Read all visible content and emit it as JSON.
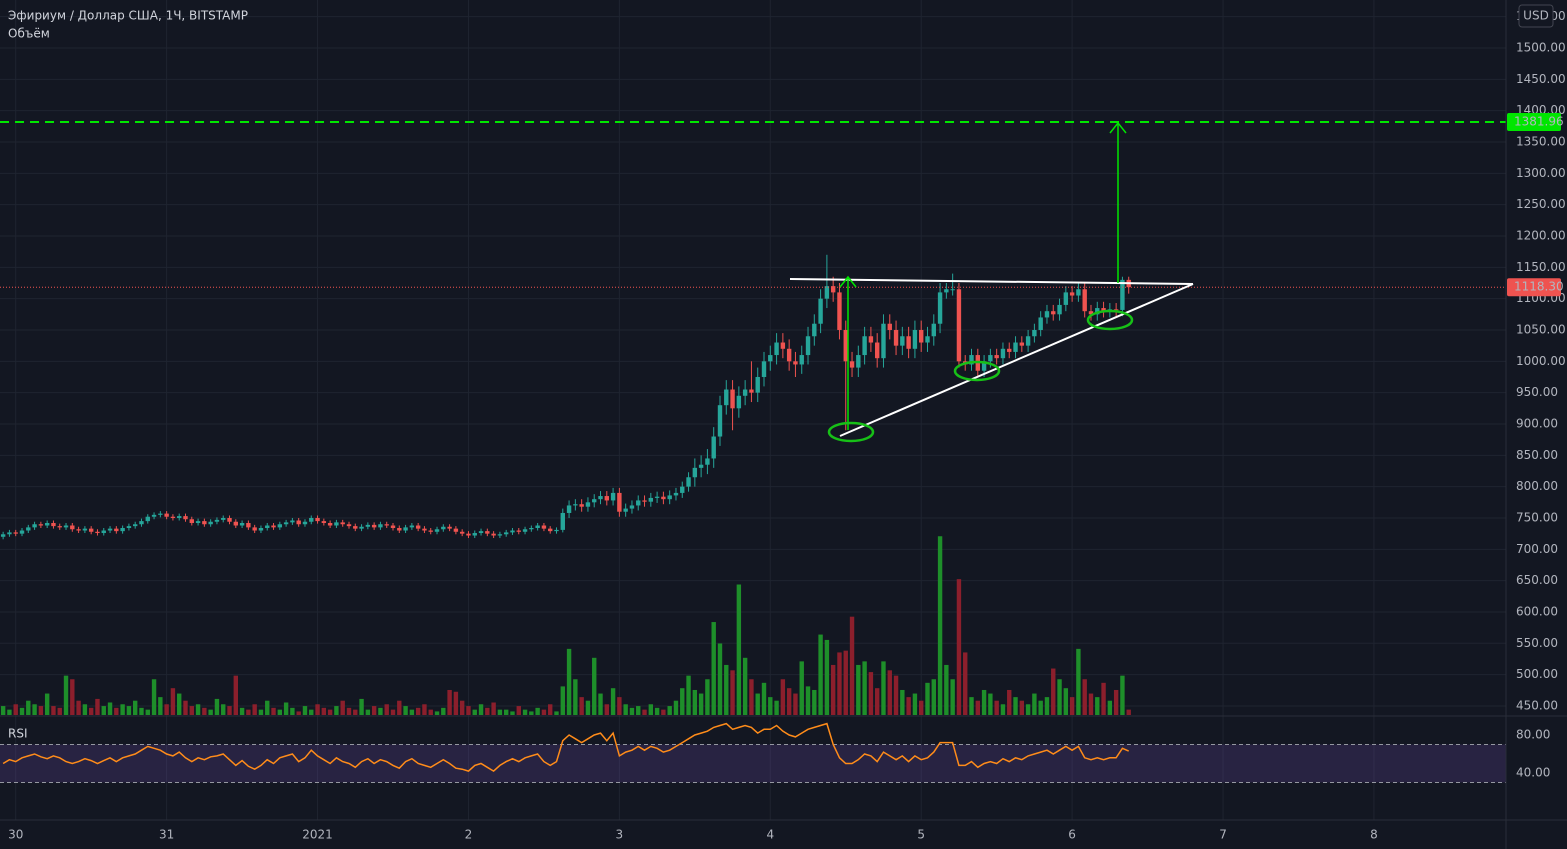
{
  "header": {
    "title": "Эфириум / Доллар США, 1Ч, BITSTAMP",
    "volume_label": "Объём",
    "currency": "USD"
  },
  "chart_data": [
    {
      "type": "candlestick",
      "grid": true,
      "up_color": "#26a69a",
      "down_color": "#ef5350",
      "xlim": [
        -0.5,
        239
      ],
      "xticks": [
        {
          "value": 2,
          "label": "30"
        },
        {
          "value": 26,
          "label": "31"
        },
        {
          "value": 50,
          "label": "2021"
        },
        {
          "value": 74,
          "label": "2"
        },
        {
          "value": 98,
          "label": "3"
        },
        {
          "value": 122,
          "label": "4"
        },
        {
          "value": 146,
          "label": "5"
        },
        {
          "value": 170,
          "label": "6"
        },
        {
          "value": 194,
          "label": "7"
        },
        {
          "value": 218,
          "label": "8"
        }
      ],
      "ylim": [
        435.6,
        1576.6
      ],
      "yticks": [
        {
          "value": 450,
          "label": "450.00"
        },
        {
          "value": 500,
          "label": "500.00"
        },
        {
          "value": 550,
          "label": "550.00"
        },
        {
          "value": 600,
          "label": "600.00"
        },
        {
          "value": 650,
          "label": "650.00"
        },
        {
          "value": 700,
          "label": "700.00"
        },
        {
          "value": 750,
          "label": "750.00"
        },
        {
          "value": 800,
          "label": "800.00"
        },
        {
          "value": 850,
          "label": "850.00"
        },
        {
          "value": 900,
          "label": "900.00"
        },
        {
          "value": 950,
          "label": "950.00"
        },
        {
          "value": 1000,
          "label": "1000.00"
        },
        {
          "value": 1050,
          "label": "1050.00"
        },
        {
          "value": 1100,
          "label": "1100.00"
        },
        {
          "value": 1150,
          "label": "1150.00"
        },
        {
          "value": 1200,
          "label": "1200.00"
        },
        {
          "value": 1250,
          "label": "1250.00"
        },
        {
          "value": 1300,
          "label": "1300.00"
        },
        {
          "value": 1350,
          "label": "1350.00"
        },
        {
          "value": 1400,
          "label": "1400.00"
        },
        {
          "value": 1450,
          "label": "1450.00"
        },
        {
          "value": 1500,
          "label": "1500.00"
        },
        {
          "value": 1550,
          "label": "1550.00"
        }
      ],
      "last_price": {
        "value": 1118.3,
        "label": "1118.30",
        "color": "#ef5350"
      },
      "target": {
        "value": 1381.96,
        "label": "1381.96",
        "color": "#00e600"
      },
      "open": [
        720,
        724,
        727,
        725,
        730,
        735,
        740,
        738,
        742,
        737,
        735,
        738,
        732,
        730,
        733,
        728,
        726,
        730,
        733,
        729,
        734,
        737,
        740,
        745,
        752,
        755,
        757,
        752,
        750,
        753,
        748,
        742,
        745,
        740,
        744,
        747,
        750,
        744,
        738,
        742,
        735,
        730,
        734,
        738,
        735,
        740,
        743,
        746,
        740,
        744,
        750,
        745,
        742,
        738,
        743,
        740,
        737,
        733,
        736,
        739,
        735,
        740,
        738,
        734,
        730,
        735,
        738,
        733,
        730,
        728,
        732,
        736,
        733,
        728,
        725,
        722,
        726,
        729,
        725,
        722,
        724,
        727,
        730,
        728,
        732,
        734,
        738,
        733,
        729,
        731,
        758,
        770,
        772,
        768,
        775,
        780,
        785,
        778,
        790,
        760,
        765,
        770,
        778,
        776,
        782,
        784,
        780,
        786,
        790,
        800,
        815,
        830,
        835,
        845,
        880,
        930,
        955,
        925,
        945,
        955,
        950,
        975,
        1000,
        1010,
        1030,
        1020,
        1000,
        995,
        1010,
        1040,
        1060,
        1100,
        1120,
        1110,
        1050,
        1000,
        990,
        1010,
        1040,
        1030,
        1005,
        1060,
        1050,
        1025,
        1040,
        1020,
        1050,
        1030,
        1040,
        1060,
        1110,
        1115,
        1115,
        1000,
        995,
        1010,
        985,
        1000,
        1010,
        1005,
        1020,
        1015,
        1030,
        1025,
        1040,
        1050,
        1070,
        1080,
        1075,
        1090,
        1110,
        1105,
        1115,
        1080,
        1075,
        1085,
        1080,
        1083,
        1082,
        1130
      ],
      "high": [
        728,
        731,
        731,
        734,
        739,
        744,
        744,
        746,
        746,
        741,
        742,
        742,
        736,
        737,
        737,
        732,
        734,
        737,
        737,
        738,
        741,
        744,
        749,
        756,
        759,
        761,
        761,
        756,
        757,
        757,
        752,
        749,
        749,
        748,
        751,
        754,
        754,
        748,
        746,
        746,
        739,
        738,
        742,
        742,
        744,
        747,
        750,
        750,
        748,
        754,
        754,
        749,
        746,
        747,
        747,
        744,
        741,
        740,
        743,
        743,
        744,
        744,
        742,
        738,
        739,
        742,
        742,
        737,
        734,
        736,
        740,
        740,
        737,
        732,
        729,
        730,
        733,
        733,
        729,
        728,
        731,
        734,
        734,
        736,
        738,
        742,
        742,
        737,
        735,
        765,
        778,
        780,
        780,
        783,
        788,
        793,
        793,
        798,
        798,
        773,
        778,
        786,
        786,
        790,
        792,
        792,
        794,
        798,
        808,
        823,
        845,
        850,
        860,
        895,
        945,
        970,
        970,
        960,
        970,
        1000,
        990,
        1015,
        1025,
        1045,
        1045,
        1035,
        1015,
        1025,
        1055,
        1075,
        1115,
        1170,
        1135,
        1125,
        1065,
        1015,
        1025,
        1055,
        1055,
        1045,
        1075,
        1075,
        1065,
        1055,
        1055,
        1065,
        1065,
        1055,
        1075,
        1125,
        1125,
        1140,
        1125,
        1010,
        1020,
        1020,
        1010,
        1020,
        1020,
        1030,
        1030,
        1040,
        1040,
        1050,
        1060,
        1080,
        1090,
        1090,
        1100,
        1120,
        1120,
        1125,
        1125,
        1090,
        1095,
        1095,
        1093,
        1093,
        1135,
        1135
      ],
      "low": [
        716,
        720,
        721,
        721,
        726,
        731,
        734,
        734,
        733,
        731,
        731,
        728,
        726,
        726,
        724,
        722,
        722,
        726,
        725,
        725,
        730,
        733,
        736,
        741,
        748,
        751,
        748,
        746,
        746,
        744,
        738,
        738,
        736,
        736,
        740,
        743,
        740,
        734,
        734,
        731,
        726,
        726,
        730,
        731,
        731,
        736,
        739,
        736,
        736,
        740,
        741,
        738,
        734,
        734,
        736,
        733,
        729,
        729,
        732,
        731,
        731,
        734,
        730,
        726,
        726,
        731,
        729,
        726,
        724,
        724,
        728,
        729,
        724,
        721,
        718,
        718,
        722,
        721,
        718,
        718,
        720,
        723,
        724,
        724,
        728,
        730,
        729,
        725,
        725,
        727,
        750,
        762,
        760,
        760,
        767,
        772,
        770,
        770,
        752,
        752,
        757,
        762,
        768,
        768,
        774,
        772,
        772,
        778,
        782,
        792,
        800,
        815,
        820,
        830,
        865,
        915,
        890,
        910,
        930,
        935,
        935,
        960,
        985,
        995,
        1005,
        985,
        975,
        980,
        995,
        1025,
        1045,
        1085,
        1095,
        1035,
        890,
        975,
        975,
        995,
        1015,
        990,
        990,
        1035,
        1010,
        1010,
        1005,
        1005,
        1015,
        1015,
        1025,
        1045,
        1100,
        1105,
        990,
        985,
        985,
        975,
        975,
        990,
        995,
        995,
        1005,
        1005,
        1015,
        1015,
        1030,
        1040,
        1060,
        1065,
        1065,
        1080,
        1095,
        1095,
        1070,
        1065,
        1065,
        1070,
        1070,
        1072,
        1072,
        1108
      ],
      "close": [
        724,
        727,
        725,
        730,
        735,
        740,
        738,
        742,
        737,
        735,
        738,
        732,
        730,
        733,
        728,
        726,
        730,
        733,
        729,
        734,
        737,
        740,
        745,
        752,
        755,
        757,
        752,
        750,
        753,
        748,
        742,
        745,
        740,
        744,
        747,
        750,
        744,
        738,
        742,
        735,
        730,
        734,
        738,
        735,
        740,
        743,
        746,
        740,
        744,
        750,
        745,
        742,
        738,
        743,
        740,
        737,
        733,
        736,
        739,
        735,
        740,
        738,
        734,
        730,
        735,
        738,
        733,
        730,
        728,
        732,
        736,
        733,
        728,
        725,
        722,
        726,
        729,
        725,
        722,
        724,
        727,
        730,
        728,
        732,
        734,
        738,
        733,
        729,
        731,
        758,
        770,
        772,
        768,
        775,
        780,
        785,
        778,
        790,
        760,
        765,
        770,
        778,
        776,
        782,
        784,
        780,
        786,
        790,
        800,
        815,
        830,
        835,
        845,
        880,
        930,
        955,
        925,
        945,
        955,
        950,
        975,
        1000,
        1010,
        1030,
        1020,
        1000,
        995,
        1010,
        1040,
        1060,
        1100,
        1120,
        1110,
        1050,
        1000,
        990,
        1010,
        1040,
        1030,
        1005,
        1060,
        1050,
        1025,
        1040,
        1020,
        1050,
        1030,
        1040,
        1060,
        1110,
        1115,
        1115,
        1000,
        995,
        1010,
        985,
        1000,
        1010,
        1005,
        1020,
        1015,
        1030,
        1025,
        1040,
        1050,
        1070,
        1080,
        1075,
        1090,
        1110,
        1105,
        1115,
        1080,
        1075,
        1085,
        1080,
        1083,
        1082,
        1130,
        1118.3
      ]
    },
    {
      "type": "volume",
      "up_color": "#1e8f2a",
      "down_color": "#8c1f2c",
      "ylim": [
        0,
        400
      ],
      "values": [
        5,
        3,
        6,
        4,
        8,
        6,
        5,
        12,
        5,
        4,
        22,
        20,
        8,
        6,
        4,
        9,
        5,
        7,
        4,
        6,
        5,
        8,
        4,
        3,
        20,
        10,
        6,
        15,
        12,
        8,
        5,
        6,
        4,
        3,
        9,
        6,
        5,
        22,
        4,
        3,
        6,
        3,
        8,
        4,
        3,
        7,
        4,
        2,
        5,
        3,
        6,
        4,
        3,
        5,
        8,
        4,
        3,
        9,
        3,
        5,
        4,
        6,
        3,
        8,
        5,
        3,
        4,
        6,
        3,
        2,
        4,
        14,
        13,
        8,
        5,
        3,
        6,
        4,
        7,
        3,
        3,
        2,
        5,
        3,
        2,
        4,
        3,
        6,
        2,
        16,
        37,
        20,
        10,
        8,
        32,
        12,
        6,
        15,
        10,
        6,
        4,
        5,
        3,
        6,
        4,
        3,
        5,
        8,
        15,
        22,
        14,
        12,
        20,
        52,
        40,
        28,
        25,
        73,
        32,
        20,
        12,
        18,
        10,
        8,
        20,
        15,
        12,
        30,
        16,
        14,
        45,
        42,
        28,
        35,
        36,
        55,
        28,
        30,
        24,
        15,
        30,
        25,
        22,
        14,
        10,
        12,
        8,
        18,
        20,
        100,
        28,
        20,
        76,
        35,
        10,
        8,
        14,
        12,
        8,
        6,
        14,
        10,
        8,
        6,
        12,
        8,
        10,
        26,
        20,
        15,
        10,
        37,
        20,
        12,
        10,
        18,
        8,
        14,
        22,
        3
      ]
    },
    {
      "type": "line",
      "title": "RSI",
      "color": "#ff8c1a",
      "band_color": "#7e57c2",
      "levels": [
        70,
        30
      ],
      "ylim": [
        -9.5,
        98.9
      ],
      "yticks": [
        {
          "value": 80,
          "label": "80.00"
        },
        {
          "value": 40,
          "label": "40.00"
        }
      ],
      "values": [
        50,
        54,
        52,
        56,
        58,
        60,
        57,
        55,
        58,
        56,
        52,
        50,
        52,
        55,
        53,
        50,
        53,
        56,
        52,
        56,
        58,
        60,
        64,
        68,
        66,
        64,
        60,
        58,
        62,
        56,
        52,
        56,
        54,
        57,
        58,
        60,
        54,
        48,
        53,
        47,
        44,
        48,
        54,
        50,
        56,
        58,
        60,
        52,
        56,
        64,
        58,
        54,
        50,
        56,
        52,
        50,
        46,
        52,
        55,
        50,
        54,
        52,
        48,
        45,
        52,
        55,
        50,
        48,
        46,
        50,
        54,
        50,
        45,
        44,
        42,
        48,
        50,
        46,
        42,
        48,
        52,
        55,
        52,
        56,
        58,
        60,
        52,
        48,
        52,
        74,
        80,
        76,
        72,
        76,
        80,
        82,
        74,
        82,
        58,
        62,
        64,
        68,
        64,
        68,
        66,
        62,
        64,
        68,
        72,
        76,
        80,
        82,
        84,
        88,
        90,
        92,
        86,
        88,
        90,
        88,
        82,
        86,
        86,
        90,
        84,
        80,
        78,
        82,
        86,
        88,
        90,
        92,
        70,
        56,
        50,
        50,
        54,
        60,
        58,
        52,
        62,
        58,
        54,
        58,
        52,
        58,
        54,
        56,
        62,
        72,
        72,
        72,
        48,
        48,
        52,
        46,
        50,
        52,
        50,
        55,
        52,
        56,
        54,
        58,
        60,
        62,
        64,
        60,
        64,
        68,
        64,
        68,
        56,
        54,
        56,
        54,
        56,
        56,
        66,
        63
      ]
    }
  ]
}
